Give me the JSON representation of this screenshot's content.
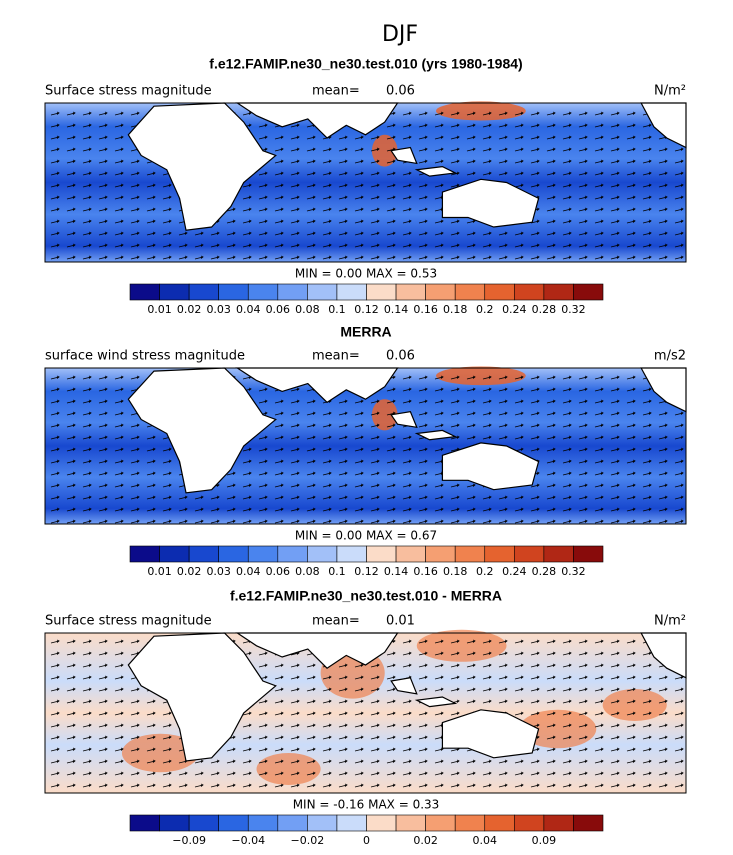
{
  "header": {
    "title": "DJF"
  },
  "colors": [
    "#0b0b8a",
    "#0c2cb0",
    "#1848cf",
    "#2a66e2",
    "#4a84ee",
    "#729ff4",
    "#a2c0f8",
    "#cadcfa",
    "#fbdcc8",
    "#f8be9e",
    "#f59f72",
    "#f0824e",
    "#e5632f",
    "#d0441f",
    "#b02715",
    "#880b0b"
  ],
  "panels": [
    {
      "title": "f.e12.FAMIP.ne30_ne30.test.010 (yrs 1980-1984)",
      "label": "Surface stress magnitude",
      "mean_label": "mean=",
      "mean": "0.06",
      "units": "N/m²",
      "minmax": "MIN =   0.00 MAX =    0.53",
      "colorbar_labels": [
        "0.01",
        "0.02",
        "0.03",
        "0.04",
        "0.06",
        "0.08",
        "0.1",
        "0.12",
        "0.14",
        "0.16",
        "0.18",
        "0.2",
        "0.24",
        "0.28",
        "0.32"
      ],
      "style": "abs"
    },
    {
      "title": "MERRA",
      "label": "surface wind stress magnitude",
      "mean_label": "mean=",
      "mean": "0.06",
      "units": "m/s2",
      "minmax": "MIN =   0.00 MAX =    0.67",
      "colorbar_labels": [
        "0.01",
        "0.02",
        "0.03",
        "0.04",
        "0.06",
        "0.08",
        "0.1",
        "0.12",
        "0.14",
        "0.16",
        "0.18",
        "0.2",
        "0.24",
        "0.28",
        "0.32"
      ],
      "style": "abs"
    },
    {
      "title": "f.e12.FAMIP.ne30_ne30.test.010 - MERRA",
      "label": "Surface stress magnitude",
      "mean_label": "mean=",
      "mean": "0.01",
      "units": "N/m²",
      "minmax": "MIN =  -0.16 MAX =    0.33",
      "colorbar_labels": [
        "−0.09",
        "−0.04",
        "−0.02",
        "0",
        "0.02",
        "0.04",
        "0.09"
      ],
      "style": "diff"
    }
  ]
}
